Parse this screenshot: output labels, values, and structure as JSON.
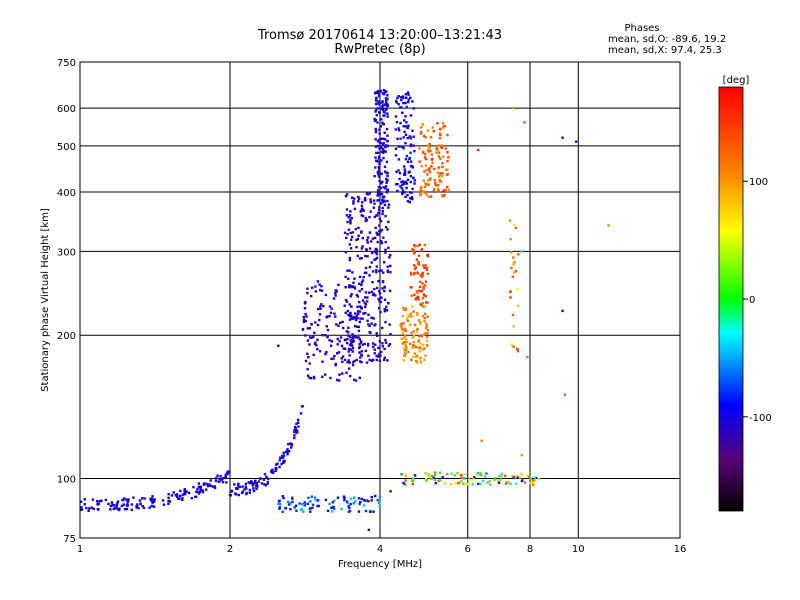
{
  "chart_data": {
    "type": "scatter",
    "title": "Tromsø 20170614 13:20:00–13:21:43",
    "subtitle": "RwPretec (8p)",
    "xlabel": "Frequency [MHz]",
    "ylabel": "Stationary phase Virtual Height [km]",
    "x_scale": "log",
    "y_scale": "log",
    "xlim": [
      1,
      16
    ],
    "ylim": [
      75,
      750
    ],
    "x_ticks": [
      1,
      2,
      4,
      6,
      8,
      10,
      16
    ],
    "x_tick_labels": [
      "1",
      "2",
      "4",
      "6",
      "8",
      "10",
      "16"
    ],
    "y_ticks": [
      75,
      100,
      200,
      300,
      400,
      500,
      600,
      750
    ],
    "y_tick_labels": [
      "75",
      "100",
      "200",
      "300",
      "400",
      "500",
      "600",
      "750"
    ],
    "grid": true,
    "stats": {
      "heading": "Phases",
      "line_o": "mean, sd,O: -89.6, 19.2",
      "line_x": "mean, sd,X:  97.4, 25.3"
    },
    "colorbar": {
      "label": "[deg]",
      "range": [
        -180,
        180
      ],
      "ticks": [
        100,
        0,
        -100
      ],
      "tick_labels": [
        "100",
        "0",
        "-100"
      ]
    },
    "clusters": [
      {
        "f": [
          1.0,
          2.0
        ],
        "h": [
          88,
          102
        ],
        "phase": [
          -110,
          -90
        ],
        "n": 160,
        "shape": "rise"
      },
      {
        "f": [
          2.0,
          2.8
        ],
        "h": [
          95,
          140
        ],
        "phase": [
          -120,
          -80
        ],
        "n": 110,
        "shape": "rise"
      },
      {
        "f": [
          2.8,
          3.7
        ],
        "h": [
          160,
          260
        ],
        "phase": [
          -125,
          -95
        ],
        "n": 170
      },
      {
        "f": [
          3.4,
          4.2
        ],
        "h": [
          175,
          400
        ],
        "phase": [
          -125,
          -90
        ],
        "n": 330
      },
      {
        "f": [
          3.9,
          4.15
        ],
        "h": [
          380,
          660
        ],
        "phase": [
          -120,
          -80
        ],
        "n": 160
      },
      {
        "f": [
          4.3,
          4.7
        ],
        "h": [
          380,
          650
        ],
        "phase": [
          -115,
          -80
        ],
        "n": 120
      },
      {
        "f": [
          4.4,
          5.0
        ],
        "h": [
          175,
          230
        ],
        "phase": [
          80,
          130
        ],
        "n": 110
      },
      {
        "f": [
          4.6,
          5.0
        ],
        "h": [
          230,
          310
        ],
        "phase": [
          120,
          160
        ],
        "n": 70
      },
      {
        "f": [
          4.8,
          5.5
        ],
        "h": [
          390,
          560
        ],
        "phase": [
          100,
          150
        ],
        "n": 120
      },
      {
        "f": [
          2.5,
          4.0
        ],
        "h": [
          85,
          92
        ],
        "phase": [
          -110,
          -40
        ],
        "n": 90
      },
      {
        "f": [
          4.4,
          8.4
        ],
        "h": [
          97,
          103
        ],
        "phase": [
          -110,
          160
        ],
        "n": 110
      },
      {
        "f": [
          7.3,
          7.6
        ],
        "h": [
          180,
          360
        ],
        "phase": [
          60,
          150
        ],
        "n": 25
      }
    ],
    "isolated_points": [
      {
        "x": 6.3,
        "y": 490,
        "phase": 160
      },
      {
        "x": 7.4,
        "y": 600,
        "phase": 100
      },
      {
        "x": 7.8,
        "y": 560,
        "phase": 130
      },
      {
        "x": 9.3,
        "y": 520,
        "phase": -100
      },
      {
        "x": 9.9,
        "y": 510,
        "phase": -110
      },
      {
        "x": 11.5,
        "y": 340,
        "phase": 110
      },
      {
        "x": 9.3,
        "y": 225,
        "phase": -110
      },
      {
        "x": 9.4,
        "y": 150,
        "phase": 130
      },
      {
        "x": 7.9,
        "y": 180,
        "phase": 120
      },
      {
        "x": 6.4,
        "y": 120,
        "phase": 110
      },
      {
        "x": 7.7,
        "y": 112,
        "phase": 100
      },
      {
        "x": 7.7,
        "y": 300,
        "phase": -40
      },
      {
        "x": 4.2,
        "y": 94,
        "phase": -110
      },
      {
        "x": 2.5,
        "y": 190,
        "phase": -105
      },
      {
        "x": 3.8,
        "y": 78,
        "phase": -120
      }
    ]
  }
}
